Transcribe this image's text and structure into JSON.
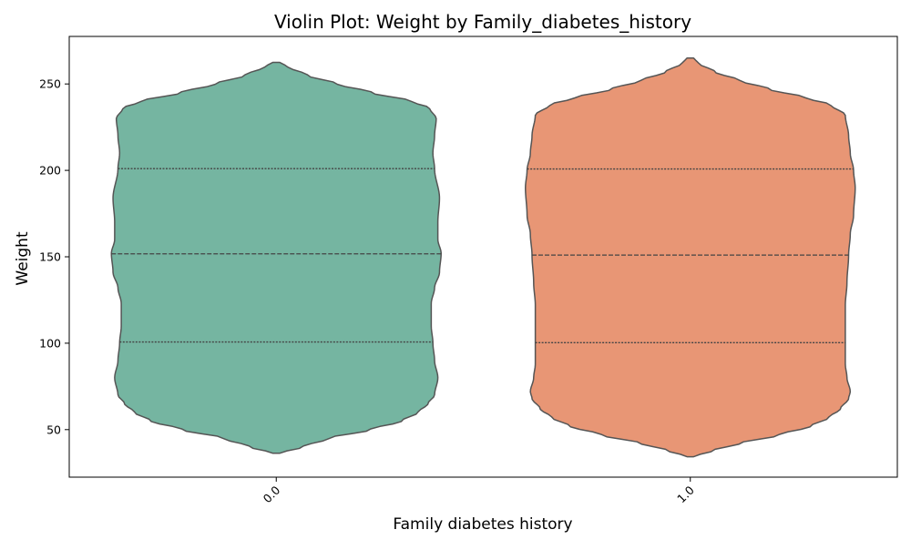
{
  "chart_data": {
    "type": "violin",
    "title": "Violin Plot: Weight by Family_diabetes_history",
    "xlabel": "Family diabetes history",
    "ylabel": "Weight",
    "categories": [
      "0.0",
      "1.0"
    ],
    "ylim": [
      22.5,
      277.5
    ],
    "yticks": [
      50,
      100,
      150,
      200,
      250
    ],
    "grid": false,
    "colors": {
      "0.0": "#75b5a1",
      "1.0": "#e89675",
      "outline": "#555555"
    },
    "series": [
      {
        "category": "0.0",
        "quartiles": [
          100.7,
          151.7,
          201.0
        ],
        "density_profile": [
          [
            36.3,
            0.02
          ],
          [
            40,
            0.16
          ],
          [
            45,
            0.32
          ],
          [
            50,
            0.57
          ],
          [
            55,
            0.76
          ],
          [
            60,
            0.86
          ],
          [
            65,
            0.92
          ],
          [
            70,
            0.96
          ],
          [
            80,
            0.98
          ],
          [
            90,
            0.96
          ],
          [
            100,
            0.95
          ],
          [
            110,
            0.94
          ],
          [
            123,
            0.94
          ],
          [
            132,
            0.96
          ],
          [
            141,
            0.99
          ],
          [
            152,
            1.0
          ],
          [
            160,
            0.98
          ],
          [
            170,
            0.98
          ],
          [
            184,
            0.99
          ],
          [
            201,
            0.96
          ],
          [
            210,
            0.95
          ],
          [
            220,
            0.96
          ],
          [
            230,
            0.97
          ],
          [
            236,
            0.93
          ],
          [
            240,
            0.82
          ],
          [
            245,
            0.58
          ],
          [
            250,
            0.37
          ],
          [
            255,
            0.19
          ],
          [
            260,
            0.07
          ],
          [
            262.5,
            0.02
          ]
        ]
      },
      {
        "category": "1.0",
        "quartiles": [
          100.3,
          151.0,
          200.8
        ],
        "density_profile": [
          [
            34.3,
            0.02
          ],
          [
            38,
            0.14
          ],
          [
            42,
            0.3
          ],
          [
            47,
            0.54
          ],
          [
            52,
            0.73
          ],
          [
            57,
            0.84
          ],
          [
            62,
            0.91
          ],
          [
            68,
            0.96
          ],
          [
            72,
            0.97
          ],
          [
            80,
            0.95
          ],
          [
            88,
            0.94
          ],
          [
            100,
            0.94
          ],
          [
            110,
            0.94
          ],
          [
            122,
            0.94
          ],
          [
            135,
            0.95
          ],
          [
            151,
            0.96
          ],
          [
            163,
            0.97
          ],
          [
            174,
            0.99
          ],
          [
            190,
            1.0
          ],
          [
            200,
            0.99
          ],
          [
            210,
            0.97
          ],
          [
            220,
            0.96
          ],
          [
            232,
            0.94
          ],
          [
            238,
            0.85
          ],
          [
            242,
            0.7
          ],
          [
            247,
            0.48
          ],
          [
            252,
            0.3
          ],
          [
            257,
            0.15
          ],
          [
            262,
            0.05
          ],
          [
            265,
            0.02
          ]
        ]
      }
    ]
  }
}
